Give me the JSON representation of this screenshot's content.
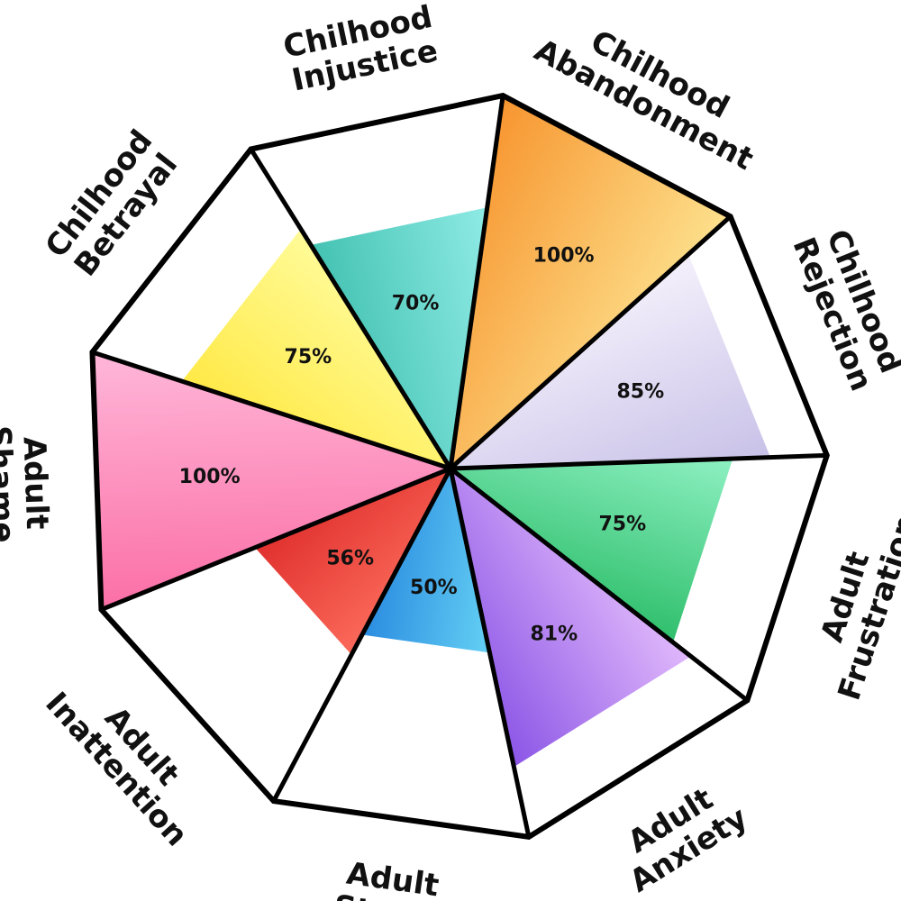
{
  "chart_data": {
    "type": "radial_wedge",
    "max_value": 100,
    "unit": "%",
    "categories": [
      {
        "lines": [
          "Chilhood",
          "Abandonment"
        ],
        "value": 100,
        "label": "100%",
        "colors": [
          "#f7952f",
          "#fde08c"
        ]
      },
      {
        "lines": [
          "Chilhood",
          "Rejection"
        ],
        "value": 85,
        "label": "85%",
        "colors": [
          "#f4f0fb",
          "#c8c1e8"
        ]
      },
      {
        "lines": [
          "Adult",
          "Frustration"
        ],
        "value": 75,
        "label": "75%",
        "colors": [
          "#8ef0c2",
          "#2fbf6c"
        ]
      },
      {
        "lines": [
          "Adult",
          "Anxiety"
        ],
        "value": 81,
        "label": "81%",
        "colors": [
          "#e0b8fb",
          "#8b55e6"
        ]
      },
      {
        "lines": [
          "Adult",
          "Stress"
        ],
        "value": 50,
        "label": "50%",
        "colors": [
          "#64d0f4",
          "#2b8ce0"
        ]
      },
      {
        "lines": [
          "Adult",
          "Inattention"
        ],
        "value": 56,
        "label": "56%",
        "colors": [
          "#fb6a5a",
          "#e0302e"
        ]
      },
      {
        "lines": [
          "Adult",
          "Shame"
        ],
        "value": 100,
        "label": "100%",
        "colors": [
          "#fb6fa6",
          "#ffb7d9"
        ]
      },
      {
        "lines": [
          "Chilhood",
          "Betrayal"
        ],
        "value": 75,
        "label": "75%",
        "colors": [
          "#ffe946",
          "#fffb98"
        ]
      },
      {
        "lines": [
          "Chilhood",
          "Injustice"
        ],
        "value": 70,
        "label": "70%",
        "colors": [
          "#43c2b2",
          "#8febe5"
        ]
      }
    ]
  }
}
